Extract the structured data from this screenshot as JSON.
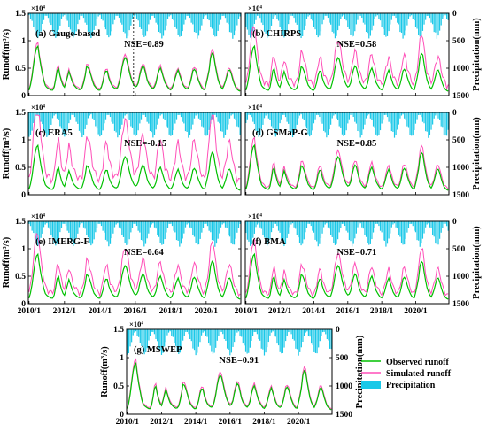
{
  "chart_data": {
    "type": "line",
    "x_range": [
      "2010/1",
      "2021/12"
    ],
    "x_ticks": [
      "2010/1",
      "2012/1",
      "2014/1",
      "2016/1",
      "2018/1",
      "2020/1"
    ],
    "runoff_axis": {
      "label": "Runoff(m³/s)",
      "exponent_label": "×10⁴",
      "ticks": [
        "0",
        "0.5",
        "1",
        "1.5"
      ],
      "range": [
        0,
        1.5
      ]
    },
    "precip_axis": {
      "label": "Precipitation(mm)",
      "ticks": [
        "0",
        "500",
        "1000",
        "1500"
      ],
      "range": [
        0,
        1500
      ],
      "inverted": true
    },
    "legend": {
      "position": "right",
      "items": [
        {
          "label": "Observed runoff",
          "color": "#00c000",
          "kind": "line"
        },
        {
          "label": "Simulated runoff",
          "color": "#ff4fb8",
          "kind": "line"
        },
        {
          "label": "Precipitation",
          "color": "#1ac8e8",
          "kind": "bar"
        }
      ]
    },
    "series_colors": {
      "observed": "#00c000",
      "simulated": "#ff4fb8",
      "precipitation": "#1ac8e8"
    },
    "precip_profile": [
      40,
      95,
      150,
      220,
      300,
      360,
      420,
      390,
      300,
      200,
      110,
      50
    ],
    "observed": [
      0.1,
      0.25,
      0.55,
      0.85,
      0.9,
      0.6,
      0.4,
      0.2,
      0.15,
      0.12,
      0.1,
      0.1,
      0.3,
      0.55,
      0.35,
      0.2,
      0.15,
      0.3,
      0.45,
      0.3,
      0.2,
      0.15,
      0.12,
      0.1,
      0.15,
      0.3,
      0.55,
      0.48,
      0.35,
      0.2,
      0.15,
      0.1,
      0.1,
      0.2,
      0.4,
      0.48,
      0.3,
      0.2,
      0.15,
      0.12,
      0.15,
      0.3,
      0.55,
      0.7,
      0.65,
      0.45,
      0.3,
      0.2,
      0.15,
      0.2,
      0.4,
      0.55,
      0.5,
      0.3,
      0.2,
      0.15,
      0.12,
      0.2,
      0.4,
      0.52,
      0.4,
      0.25,
      0.18,
      0.12,
      0.1,
      0.2,
      0.35,
      0.48,
      0.35,
      0.22,
      0.15,
      0.12,
      0.15,
      0.3,
      0.5,
      0.45,
      0.3,
      0.2,
      0.12,
      0.1,
      0.25,
      0.45,
      0.78,
      0.75,
      0.5,
      0.3,
      0.18,
      0.12,
      0.2,
      0.35,
      0.5,
      0.4,
      0.25,
      0.15,
      0.1,
      0.08
    ],
    "panels": [
      {
        "label": "(a) Gauge-based",
        "nse": "NSE=0.89",
        "sim_scale": 1.05,
        "sim_extra": 0.03,
        "marker_2016": true
      },
      {
        "label": "(b) CHIRPS",
        "nse": "NSE=0.58",
        "sim_scale": 1.35,
        "sim_extra": 0.12,
        "marker_2016": false
      },
      {
        "label": "(c) ERA5",
        "nse": "NSE=-0.15",
        "sim_scale": 1.85,
        "sim_extra": 0.15,
        "marker_2016": false
      },
      {
        "label": "(d) GSMaP-G",
        "nse": "NSE=0.85",
        "sim_scale": 1.12,
        "sim_extra": 0.04,
        "marker_2016": false
      },
      {
        "label": "(e) IMERG-F",
        "nse": "NSE=0.64",
        "sim_scale": 1.38,
        "sim_extra": 0.1,
        "marker_2016": false
      },
      {
        "label": "(f) BMA",
        "nse": "NSE=0.71",
        "sim_scale": 1.25,
        "sim_extra": 0.08,
        "marker_2016": false
      },
      {
        "label": "(g) MSWEP",
        "nse": "NSE=0.91",
        "sim_scale": 1.06,
        "sim_extra": 0.02,
        "marker_2016": false
      }
    ]
  }
}
